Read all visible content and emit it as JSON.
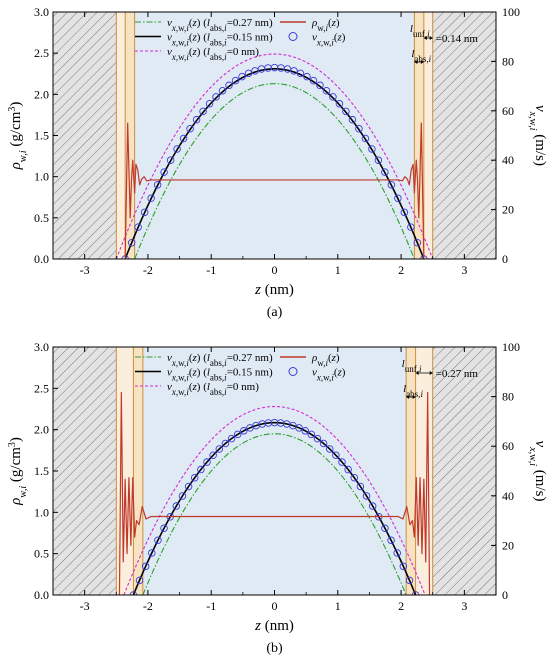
{
  "chart_data": [
    {
      "type": "line",
      "panel_label": "(a)",
      "xlabel": "z (nm)",
      "ylabel_left": "ρw,i (g/cm3)",
      "ylabel_right": "vx,w,i (m/s)",
      "xlim": [
        -3.5,
        3.5
      ],
      "ylim_left": [
        0,
        3.0
      ],
      "ylim_right": [
        0,
        100
      ],
      "xticks": [
        "-3",
        "-2",
        "-1",
        "0",
        "1",
        "2",
        "3"
      ],
      "yticks_left": [
        "0.0",
        "0.5",
        "1.0",
        "1.5",
        "2.0",
        "2.5",
        "3.0"
      ],
      "yticks_right": [
        "0",
        "20",
        "40",
        "60",
        "80",
        "100"
      ],
      "wall_edges": [
        -2.5,
        2.5
      ],
      "unf_region": [
        2.36,
        2.5
      ],
      "abs_region": [
        2.21,
        2.36
      ],
      "annotations": {
        "unf": "=0.14 nm",
        "unf_label": "lunf,i",
        "abs_label": "labs,i"
      },
      "legend": [
        {
          "label": "vx,w,i(z) (labs,i=0.27 nm)",
          "color": "#2ca02c",
          "style": "dashdot"
        },
        {
          "label": "ρw,i(z)",
          "color": "#c0392b",
          "style": "solid"
        },
        {
          "label": "vx,w,i(z) (labs,i=0.15 nm)",
          "color": "#000000",
          "style": "solid"
        },
        {
          "label": "vx,w,i(z)",
          "color": "#3b3bd6",
          "style": "circle"
        },
        {
          "label": "vx,w,i(z) (labs,i=0 nm)",
          "color": "#d62ad6",
          "style": "dash"
        }
      ],
      "series": [
        {
          "name": "vx,w,i(z) (labs,i=0.27 nm)",
          "axis": "right",
          "shape": "parabola",
          "peak": 71,
          "zero_at": 2.21
        },
        {
          "name": "vx,w,i(z) (labs,i=0.15 nm)",
          "axis": "right",
          "shape": "parabola",
          "peak": 77,
          "zero_at": 2.36
        },
        {
          "name": "vx,w,i(z) (labs,i=0 nm)",
          "axis": "right",
          "shape": "parabola",
          "peak": 83,
          "zero_at": 2.5
        },
        {
          "name": "vx,w,i(z)",
          "axis": "right",
          "shape": "markers",
          "peak": 77.5,
          "zero_at": 2.36
        },
        {
          "name": "ρw,i(z)",
          "axis": "left",
          "shape": "density",
          "x": [
            -2.36,
            -2.32,
            -2.28,
            -2.26,
            -2.24,
            -2.21,
            -2.19,
            -2.16,
            -2.13,
            -2.1,
            -2.06,
            -2.02,
            -1.95,
            -1.8,
            0,
            1.8,
            1.95,
            2.02,
            2.06,
            2.1,
            2.13,
            2.16,
            2.19,
            2.21,
            2.24,
            2.26,
            2.28,
            2.32,
            2.36
          ],
          "y": [
            0.0,
            1.65,
            0.5,
            0.95,
            1.2,
            0.8,
            1.15,
            1.08,
            0.9,
            0.97,
            1.0,
            0.95,
            0.96,
            0.96,
            0.96,
            0.96,
            0.96,
            0.95,
            1.0,
            0.97,
            0.9,
            1.08,
            1.15,
            0.8,
            1.2,
            0.95,
            0.5,
            1.65,
            0.0
          ]
        }
      ]
    },
    {
      "type": "line",
      "panel_label": "(b)",
      "xlabel": "z (nm)",
      "ylabel_left": "ρw,i (g/cm3)",
      "ylabel_right": "vx,w,i (m/s)",
      "xlim": [
        -3.5,
        3.5
      ],
      "ylim_left": [
        0,
        3.0
      ],
      "ylim_right": [
        0,
        100
      ],
      "xticks": [
        "-3",
        "-2",
        "-1",
        "0",
        "1",
        "2",
        "3"
      ],
      "yticks_left": [
        "0.0",
        "0.5",
        "1.0",
        "1.5",
        "2.0",
        "2.5",
        "3.0"
      ],
      "yticks_right": [
        "0",
        "20",
        "40",
        "60",
        "80",
        "100"
      ],
      "wall_edges": [
        -2.5,
        2.5
      ],
      "unf_region": [
        2.23,
        2.5
      ],
      "abs_region": [
        2.08,
        2.23
      ],
      "annotations": {
        "unf": "=0.27 nm",
        "unf_label": "lunf,i",
        "abs_label": "labs,i"
      },
      "legend": [
        {
          "label": "vx,w,i(z) (labs,i=0.27 nm)",
          "color": "#2ca02c",
          "style": "dashdot"
        },
        {
          "label": "ρw,i(z)",
          "color": "#c0392b",
          "style": "solid"
        },
        {
          "label": "vx,w,i(z) (labs,i=0.15 nm)",
          "color": "#000000",
          "style": "solid"
        },
        {
          "label": "vx,w,i(z)",
          "color": "#3b3bd6",
          "style": "circle"
        },
        {
          "label": "vx,w,i(z) (labs,i=0 nm)",
          "color": "#d62ad6",
          "style": "dash"
        }
      ],
      "series": [
        {
          "name": "vx,w,i(z) (labs,i=0.27 nm)",
          "axis": "right",
          "shape": "parabola",
          "peak": 65,
          "zero_at": 2.08
        },
        {
          "name": "vx,w,i(z) (labs,i=0.15 nm)",
          "axis": "right",
          "shape": "parabola",
          "peak": 69.5,
          "zero_at": 2.23
        },
        {
          "name": "vx,w,i(z) (labs,i=0 nm)",
          "axis": "right",
          "shape": "parabola",
          "peak": 76,
          "zero_at": 2.38
        },
        {
          "name": "vx,w,i(z)",
          "axis": "right",
          "shape": "markers",
          "peak": 69.5,
          "zero_at": 2.23
        },
        {
          "name": "ρw,i(z)",
          "axis": "left",
          "shape": "density",
          "x": [
            -2.45,
            -2.42,
            -2.39,
            -2.36,
            -2.33,
            -2.3,
            -2.27,
            -2.24,
            -2.21,
            -2.18,
            -2.14,
            -2.09,
            -2.03,
            -1.95,
            -1.8,
            0,
            1.8,
            1.95,
            2.03,
            2.09,
            2.14,
            2.18,
            2.21,
            2.24,
            2.27,
            2.3,
            2.33,
            2.36,
            2.39,
            2.42,
            2.45
          ],
          "y": [
            0.0,
            2.45,
            0.4,
            1.4,
            0.5,
            1.42,
            0.6,
            1.42,
            0.7,
            0.9,
            0.85,
            1.07,
            0.92,
            0.95,
            0.95,
            0.95,
            0.95,
            0.95,
            0.92,
            1.07,
            0.85,
            0.9,
            0.7,
            1.42,
            0.6,
            1.42,
            0.5,
            1.4,
            0.4,
            2.45,
            0.0
          ]
        }
      ]
    }
  ]
}
